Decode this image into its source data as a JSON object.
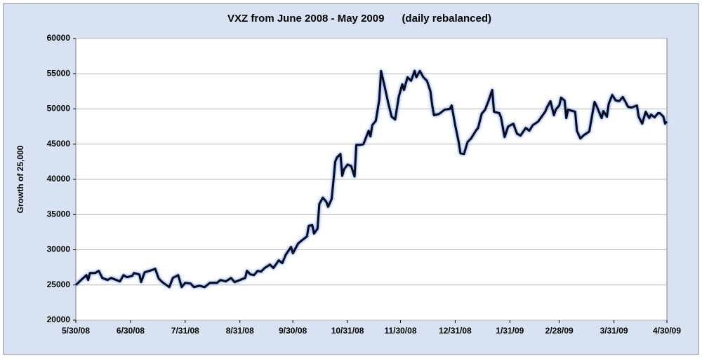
{
  "chart_data": {
    "type": "line",
    "title": "VXZ from June 2008 - May 2009      (daily rebalanced)",
    "ylabel": "Growth of 25,000",
    "x": [
      "5/30/08",
      "6/2/08",
      "6/5/08",
      "6/6/08",
      "6/7/08",
      "6/10/08",
      "6/12/08",
      "6/14/08",
      "6/17/08",
      "6/19/08",
      "6/22/08",
      "6/24/08",
      "6/26/08",
      "6/28/08",
      "7/1/08",
      "7/2/08",
      "7/5/08",
      "7/6/08",
      "7/8/08",
      "7/12/08",
      "7/14/08",
      "7/16/08",
      "7/18/08",
      "7/22/08",
      "7/24/08",
      "7/27/08",
      "7/29/08",
      "7/31/08",
      "8/3/08",
      "8/5/08",
      "8/8/08",
      "8/11/08",
      "8/14/08",
      "8/18/08",
      "8/20/08",
      "8/23/08",
      "8/26/08",
      "8/28/08",
      "8/31/08",
      "9/3/08",
      "9/4/08",
      "9/6/08",
      "9/8/08",
      "9/10/08",
      "9/12/08",
      "9/14/08",
      "9/17/08",
      "9/19/08",
      "9/22/08",
      "9/24/08",
      "9/26/08",
      "9/29/08",
      "9/30/08",
      "10/3/08",
      "10/5/08",
      "10/8/08",
      "10/9/08",
      "10/11/08",
      "10/12/08",
      "10/14/08",
      "10/15/08",
      "10/17/08",
      "10/19/08",
      "10/20/08",
      "10/22/08",
      "10/23/08",
      "10/24/08",
      "10/25/08",
      "10/27/08",
      "10/28/08",
      "10/29/08",
      "10/31/08",
      "11/2/08",
      "11/4/08",
      "11/5/08",
      "11/7/08",
      "11/9/08",
      "11/12/08",
      "11/13/08",
      "11/14/08",
      "11/16/08",
      "11/18/08",
      "11/19/08",
      "11/21/08",
      "11/23/08",
      "11/25/08",
      "11/27/08",
      "11/29/08",
      "12/1/08",
      "12/2/08",
      "12/4/08",
      "12/6/08",
      "12/8/08",
      "12/9/08",
      "12/11/08",
      "12/13/08",
      "12/15/08",
      "12/17/08",
      "12/18/08",
      "12/19/08",
      "12/22/08",
      "12/25/08",
      "12/28/08",
      "12/29/08",
      "12/31/08",
      "1/2/09",
      "1/3/09",
      "1/5/09",
      "1/7/09",
      "1/9/09",
      "1/12/09",
      "1/13/09",
      "1/15/09",
      "1/17/09",
      "1/19/09",
      "1/21/09",
      "1/22/09",
      "1/25/09",
      "1/26/09",
      "1/28/09",
      "1/30/09",
      "2/2/09",
      "2/4/09",
      "2/6/09",
      "2/9/09",
      "2/11/09",
      "2/13/09",
      "2/16/09",
      "2/18/09",
      "2/20/09",
      "2/21/09",
      "2/23/09",
      "2/25/09",
      "2/26/09",
      "2/28/09",
      "3/1/09",
      "3/3/09",
      "3/4/09",
      "3/5/09",
      "3/9/09",
      "3/10/09",
      "3/12/09",
      "3/14/09",
      "3/17/09",
      "3/20/09",
      "3/21/09",
      "3/24/09",
      "3/25/09",
      "3/27/09",
      "3/28/09",
      "3/30/09",
      "4/1/09",
      "4/3/09",
      "4/5/09",
      "4/8/09",
      "4/10/09",
      "4/13/09",
      "4/14/09",
      "4/16/09",
      "4/18/09",
      "4/20/09",
      "4/21/09",
      "4/23/09",
      "4/25/09",
      "4/26/09",
      "4/28/09",
      "4/29/09",
      "4/30/09"
    ],
    "series": [
      {
        "name": "VXZ",
        "color": "#0a0a1a",
        "values": [
          25000,
          25700,
          26400,
          25700,
          26700,
          26700,
          27000,
          26000,
          25700,
          26000,
          25700,
          25500,
          26400,
          26100,
          26300,
          26700,
          26500,
          25400,
          26800,
          27100,
          27300,
          25900,
          25400,
          24700,
          26000,
          26400,
          24700,
          25300,
          25200,
          24700,
          24900,
          24700,
          25300,
          25300,
          25700,
          25500,
          26000,
          25400,
          25700,
          26000,
          27000,
          26500,
          26400,
          27000,
          26900,
          27400,
          27900,
          27400,
          28500,
          28100,
          29300,
          30400,
          29500,
          30900,
          31300,
          31900,
          33400,
          33500,
          32300,
          33000,
          36500,
          37400,
          36800,
          36100,
          37200,
          39800,
          42500,
          43100,
          43600,
          40500,
          41400,
          42100,
          41900,
          40400,
          44900,
          44900,
          45000,
          46900,
          46100,
          47700,
          48300,
          51300,
          55400,
          53200,
          50900,
          48900,
          48500,
          51700,
          53500,
          52700,
          54500,
          54000,
          55400,
          54500,
          55400,
          54500,
          54000,
          52500,
          50500,
          49100,
          49300,
          49900,
          50000,
          50500,
          47700,
          45300,
          43700,
          43600,
          45300,
          45800,
          47000,
          47300,
          49300,
          49900,
          51200,
          52700,
          49600,
          49400,
          48800,
          46000,
          47500,
          47900,
          46500,
          46200,
          47300,
          46900,
          47700,
          48200,
          48900,
          49600,
          50200,
          51100,
          49100,
          49900,
          50500,
          51600,
          51200,
          48700,
          49900,
          49600,
          46900,
          45800,
          46300,
          46800,
          51000,
          50500,
          48700,
          49700,
          48900,
          50700,
          52000,
          51200,
          51100,
          51700,
          50300,
          50200,
          50500,
          48900,
          47900,
          49600,
          48700,
          49200,
          48800,
          49400,
          49400,
          48900,
          47900,
          48200
        ]
      }
    ],
    "xlim": [
      "5/30/08",
      "4/30/09"
    ],
    "xticks": [
      "5/30/08",
      "6/30/08",
      "7/31/08",
      "8/31/08",
      "9/30/08",
      "10/31/08",
      "11/30/08",
      "12/31/08",
      "1/31/09",
      "2/28/09",
      "3/31/09",
      "4/30/09"
    ],
    "ylim": [
      20000,
      60000
    ],
    "yticks": [
      20000,
      25000,
      30000,
      35000,
      40000,
      45000,
      50000,
      55000,
      60000
    ],
    "grid": true
  }
}
